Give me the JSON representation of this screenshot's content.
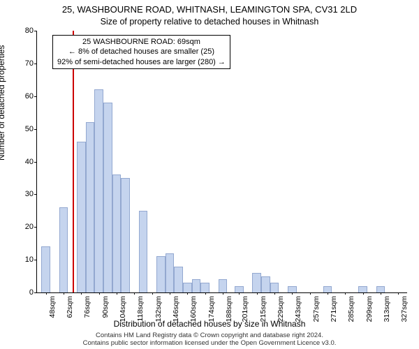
{
  "titles": {
    "main": "25, WASHBOURNE ROAD, WHITNASH, LEAMINGTON SPA, CV31 2LD",
    "sub": "Size of property relative to detached houses in Whitnash"
  },
  "ylabel": "Number of detached properties",
  "xlabel": "Distribution of detached houses by size in Whitnash",
  "footer": {
    "line1": "Contains HM Land Registry data © Crown copyright and database right 2024.",
    "line2": "Contains public sector information licensed under the Open Government Licence v3.0."
  },
  "annotation": {
    "line1": "25 WASHBOURNE ROAD: 69sqm",
    "line2": "← 8% of detached houses are smaller (25)",
    "line3": "92% of semi-detached houses are larger (280) →"
  },
  "chart": {
    "type": "histogram",
    "xlim_min": 41,
    "xlim_max": 334,
    "ylim": [
      0,
      80
    ],
    "ytick_step": 10,
    "bar_fill": "#c5d4ee",
    "bar_stroke": "#93a8d0",
    "background": "#ffffff",
    "refline_x": 69,
    "refline_color": "#cc0000",
    "bin_width": 7,
    "bins": [
      {
        "x": 48,
        "count": 14
      },
      {
        "x": 62,
        "count": 26
      },
      {
        "x": 76,
        "count": 46
      },
      {
        "x": 83,
        "count": 52
      },
      {
        "x": 90,
        "count": 62
      },
      {
        "x": 97,
        "count": 58
      },
      {
        "x": 104,
        "count": 36
      },
      {
        "x": 111,
        "count": 35
      },
      {
        "x": 118,
        "count": 0
      },
      {
        "x": 125,
        "count": 25
      },
      {
        "x": 132,
        "count": 0
      },
      {
        "x": 139,
        "count": 11
      },
      {
        "x": 146,
        "count": 12
      },
      {
        "x": 153,
        "count": 8
      },
      {
        "x": 160,
        "count": 3
      },
      {
        "x": 167,
        "count": 4
      },
      {
        "x": 174,
        "count": 3
      },
      {
        "x": 188,
        "count": 4
      },
      {
        "x": 201,
        "count": 2
      },
      {
        "x": 215,
        "count": 6
      },
      {
        "x": 222,
        "count": 5
      },
      {
        "x": 229,
        "count": 3
      },
      {
        "x": 243,
        "count": 2
      },
      {
        "x": 271,
        "count": 2
      },
      {
        "x": 299,
        "count": 2
      },
      {
        "x": 313,
        "count": 2
      }
    ],
    "xticks": [
      48,
      62,
      76,
      90,
      104,
      118,
      132,
      146,
      160,
      174,
      188,
      201,
      215,
      229,
      243,
      257,
      271,
      285,
      299,
      313,
      327
    ],
    "xtick_suffix": "sqm"
  }
}
